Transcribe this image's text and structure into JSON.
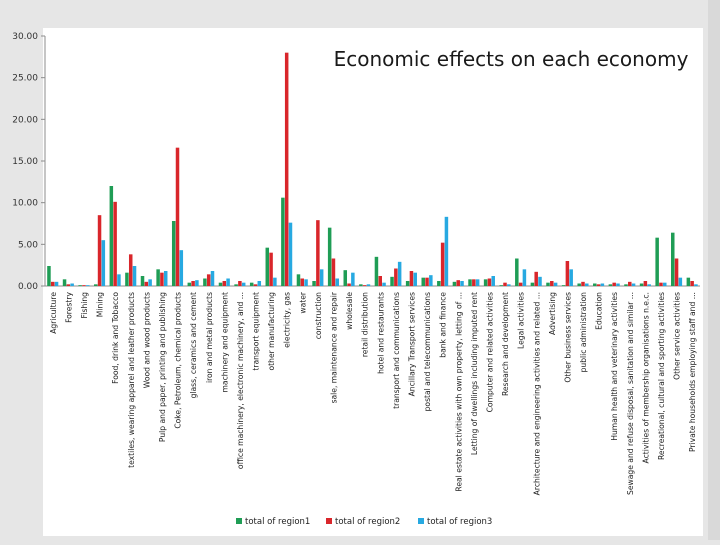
{
  "chart_data": {
    "type": "bar",
    "title": "Economic effects on each economy",
    "xlabel": "",
    "ylabel": "",
    "ylim": [
      0,
      30
    ],
    "yticks": [
      "0.00",
      "5.00",
      "10.00",
      "15.00",
      "20.00",
      "25.00",
      "30.00"
    ],
    "grid": false,
    "legend_position": "bottom-center",
    "categories": [
      "Agriculture",
      "Forestry",
      "Fishing",
      "Mining",
      "Food, drink and Tobacco",
      "textiles, wearing apparel and leather products",
      "Wood and wood products",
      "Pulp and paper, printing and publishing",
      "Coke, Petroleum, chemical products",
      "glass, ceramics and cement",
      "iron and metal products",
      "machinery and equipment",
      "office machinery, electronic machinery, and ...",
      "transport equipment",
      "other manufacturing",
      "electricity, gas",
      "water",
      "construction",
      "sale, maintenance and repair",
      "wholesale",
      "retail distribution",
      "hotel and restaurants",
      "transport and communications",
      "Ancillary Transport services",
      "postal and telecommunications",
      "bank and finance",
      "Real estate activities with own property, letting of ...",
      "Letting of dwellings including imputed rent",
      "Computer and related activities",
      "Research and development",
      "Legal activities",
      "Architecture and engineering activities and related ...",
      "Advertising",
      "Other business services",
      "public administration",
      "Education",
      "Human health and veterinary activities",
      "Sewage and refuse disposal, sanitation and similar ...",
      "Activities of membership organisations n.e.c.",
      "Recreational, cultural and sporting activities",
      "Other service activities",
      "Private households employing staff and ..."
    ],
    "series": [
      {
        "name": "total of region1",
        "color": "#1f9d55",
        "values": [
          2.4,
          0.8,
          0.1,
          0.2,
          12.0,
          1.6,
          1.2,
          2.0,
          7.8,
          0.4,
          0.9,
          0.4,
          0.2,
          0.4,
          4.6,
          10.6,
          1.4,
          0.6,
          7.0,
          1.9,
          0.2,
          3.5,
          1.1,
          0.6,
          1.0,
          0.6,
          0.5,
          0.8,
          0.8,
          0.1,
          3.3,
          0.4,
          0.4,
          0.1,
          0.3,
          0.3,
          0.2,
          0.2,
          0.3,
          5.8,
          6.4,
          1.0
        ]
      },
      {
        "name": "total of region2",
        "color": "#d9262b",
        "values": [
          0.5,
          0.2,
          0.1,
          8.5,
          10.1,
          3.8,
          0.5,
          1.6,
          16.6,
          0.6,
          1.4,
          0.6,
          0.6,
          0.2,
          4.0,
          28.0,
          0.9,
          7.9,
          3.3,
          0.3,
          0.1,
          1.2,
          2.1,
          1.8,
          1.0,
          5.2,
          0.7,
          0.8,
          0.9,
          0.4,
          0.4,
          1.7,
          0.6,
          3.0,
          0.5,
          0.2,
          0.4,
          0.5,
          0.6,
          0.4,
          3.3,
          0.6
        ]
      },
      {
        "name": "total of region3",
        "color": "#27a9e1",
        "values": [
          0.5,
          0.3,
          0.1,
          5.5,
          1.4,
          2.4,
          0.8,
          1.8,
          4.3,
          0.7,
          1.8,
          0.9,
          0.4,
          0.6,
          1.0,
          7.6,
          0.8,
          2.0,
          0.9,
          1.6,
          0.2,
          0.4,
          2.9,
          1.6,
          1.3,
          8.3,
          0.6,
          0.8,
          1.2,
          0.2,
          2.0,
          1.1,
          0.4,
          2.0,
          0.3,
          0.3,
          0.3,
          0.3,
          0.2,
          0.4,
          1.0,
          0.2
        ]
      }
    ]
  }
}
